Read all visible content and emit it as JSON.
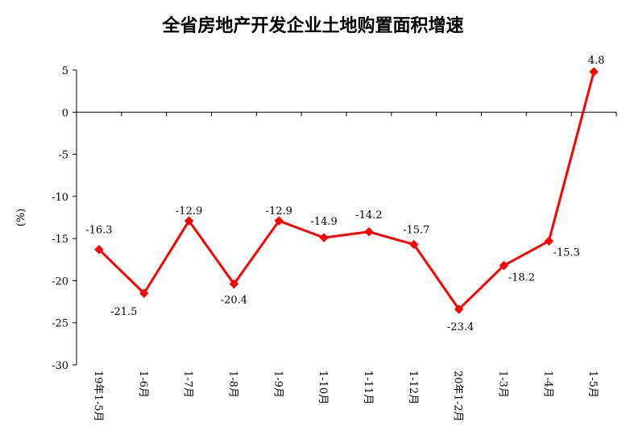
{
  "chart_data": {
    "type": "line",
    "title": "全省房地产开发企业土地购置面积增速",
    "ylabel": "(%)",
    "xlabel": "",
    "categories": [
      "19年1-5月",
      "1-6月",
      "1-7月",
      "1-8月",
      "1-9月",
      "1-10月",
      "1-11月",
      "1-12月",
      "20年1-2月",
      "1-3月",
      "1-4月",
      "1-5月"
    ],
    "series": [
      {
        "values": [
          -16.3,
          -21.5,
          -12.9,
          -20.4,
          -12.9,
          -14.9,
          -14.2,
          -15.7,
          -23.4,
          -18.2,
          -15.3,
          4.8
        ]
      }
    ],
    "data_labels": [
      "-16.3",
      "-21.5",
      "-12.9",
      "-20.4",
      "-12.9",
      "-14.9",
      "-14.2",
      "-15.7",
      "-23.4",
      "-18.2",
      "-15.3",
      "4.8"
    ],
    "ylim": [
      -30,
      5
    ],
    "yticks": [
      5,
      0,
      -5,
      -10,
      -15,
      -20,
      -25,
      -30
    ],
    "ytick_labels": [
      "5",
      "0",
      "-5",
      "-10",
      "-15",
      "-20",
      "-25",
      "-30"
    ],
    "line_color": "#ff0000",
    "marker": "diamond",
    "grid": false
  }
}
